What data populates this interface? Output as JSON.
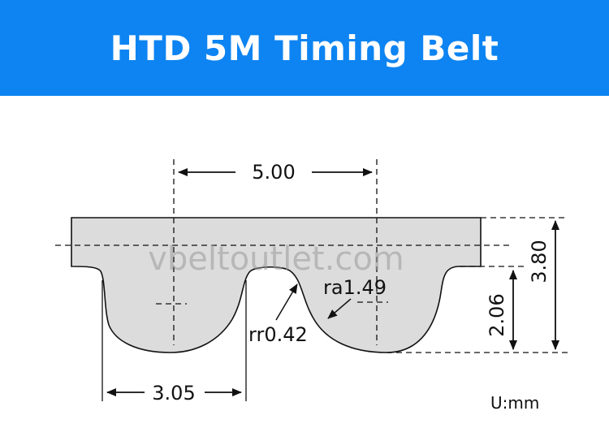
{
  "header": {
    "title": "HTD 5M Timing Belt"
  },
  "diagram": {
    "pitch_label": "5.00",
    "total_height_label": "3.80",
    "tooth_height_label": "2.06",
    "tooth_width_label": "3.05",
    "root_radius_label": "rr0.42",
    "tip_radius_label": "ra1.49",
    "watermark": "vbeltoutlet.com"
  },
  "footer": {
    "unit_label": "U:mm"
  },
  "colors": {
    "banner": "#0d84f1",
    "belt_fill": "#dcdcdc",
    "line": "#111111"
  }
}
